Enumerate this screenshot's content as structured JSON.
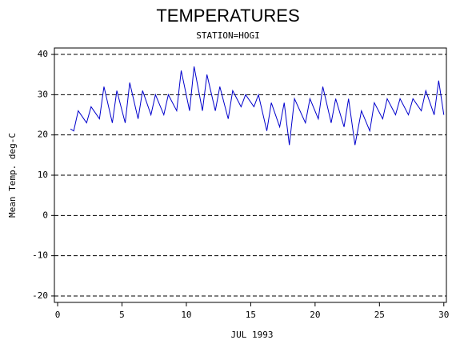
{
  "chart_data": {
    "type": "line",
    "title": "TEMPERATURES",
    "subtitle": "STATION=HOGI",
    "x_label": "JUL 1993",
    "y_label": "Mean Temp. deg-C",
    "x": [
      1.0,
      1.25,
      1.6,
      2.25,
      2.6,
      3.25,
      3.6,
      4.25,
      4.6,
      5.25,
      5.6,
      6.25,
      6.6,
      7.25,
      7.6,
      8.25,
      8.6,
      9.25,
      9.6,
      10.25,
      10.6,
      11.25,
      11.6,
      12.25,
      12.6,
      13.25,
      13.6,
      14.25,
      14.6,
      15.25,
      15.6,
      16.25,
      16.6,
      17.25,
      17.6,
      18.0,
      18.4,
      19.25,
      19.6,
      20.25,
      20.6,
      21.25,
      21.6,
      22.25,
      22.6,
      23.1,
      23.6,
      24.25,
      24.6,
      25.25,
      25.6,
      26.25,
      26.6,
      27.25,
      27.6,
      28.25,
      28.6,
      29.25,
      29.6,
      30.0
    ],
    "series": [
      {
        "color": "#0000cc",
        "values": [
          21.5,
          21,
          26,
          23,
          27,
          24,
          32,
          23,
          31,
          23,
          33,
          24,
          31,
          25,
          30,
          25,
          30,
          26,
          36,
          26,
          37,
          26,
          35,
          26,
          32,
          24,
          31,
          27,
          30,
          27,
          30,
          21,
          28,
          22,
          28,
          17.5,
          29,
          23,
          29,
          24,
          32,
          23,
          29,
          22,
          29,
          17.5,
          26,
          21,
          28,
          24,
          29,
          25,
          29,
          25,
          29,
          26,
          31,
          25,
          33.5,
          25
        ]
      }
    ],
    "xlim": [
      -0.25,
      30.2
    ],
    "ylim": [
      -21.6,
      41.6
    ],
    "xticks": [
      0,
      5,
      10,
      15,
      20,
      25,
      30
    ],
    "yticks": [
      -20,
      -10,
      0,
      10,
      20,
      30,
      40
    ],
    "grid": true
  }
}
